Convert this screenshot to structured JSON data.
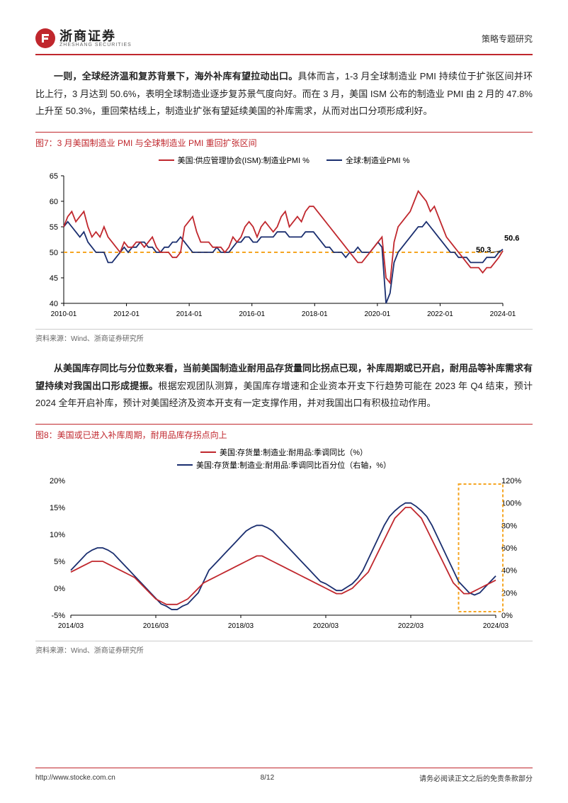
{
  "header": {
    "logo_main": "浙商证券",
    "logo_sub": "ZHESHANG SECURITIES",
    "right_text": "策略专题研究"
  },
  "para1": {
    "bold1": "一则，全球经济温和复苏背景下，海外补库有望拉动出口。",
    "text1": "具体而言，1-3 月全球制造业 PMI 持续位于扩张区间并环比上行，3 月达到 50.6%，表明全球制造业逐步复苏景气度向好。而在 3 月，美国 ISM 公布的制造业 PMI 由 2 月的 47.8%上升至 50.3%，重回荣枯线上，制造业扩张有望延续美国的补库需求，从而对出口分项形成利好。"
  },
  "fig7": {
    "title": "图7：3 月美国制造业 PMI 与全球制造业 PMI 重回扩张区间",
    "legend1": "美国:供应管理协会(ISM):制造业PMI %",
    "legend2": "全球:制造业PMI %",
    "color1": "#c0272d",
    "color2": "#1a2e6f",
    "threshold_color": "#f5a623",
    "threshold_value": 50,
    "ylim": [
      40,
      65
    ],
    "ytick_step": 5,
    "x_labels": [
      "2010-01",
      "2012-01",
      "2014-01",
      "2016-01",
      "2018-01",
      "2020-01",
      "2022-01",
      "2024-01"
    ],
    "annotations": [
      {
        "label": "50.6",
        "y": 50.6
      },
      {
        "label": "50.3",
        "y": 50.3
      }
    ],
    "series1": [
      55,
      57,
      58,
      56,
      57,
      58,
      55,
      53,
      54,
      53,
      55,
      53,
      52,
      51,
      50,
      52,
      51,
      51,
      52,
      52,
      51,
      52,
      53,
      51,
      50,
      50,
      50,
      49,
      49,
      50,
      55,
      56,
      57,
      54,
      52,
      52,
      52,
      51,
      51,
      51,
      50,
      51,
      53,
      52,
      53,
      55,
      56,
      55,
      53,
      55,
      56,
      55,
      54,
      55,
      57,
      58,
      55,
      56,
      57,
      56,
      58,
      59,
      59,
      58,
      57,
      56,
      55,
      54,
      53,
      52,
      51,
      50,
      49,
      48,
      48,
      49,
      50,
      51,
      52,
      53,
      45,
      44,
      52,
      55,
      56,
      57,
      58,
      60,
      62,
      61,
      60,
      58,
      59,
      57,
      55,
      53,
      52,
      51,
      50,
      49,
      48,
      47,
      47,
      47,
      46,
      47,
      47,
      48,
      49,
      50.3
    ],
    "series2": [
      55,
      56,
      55,
      54,
      53,
      54,
      52,
      51,
      50,
      50,
      50,
      48,
      48,
      49,
      50,
      51,
      50,
      51,
      51,
      52,
      52,
      51,
      51,
      50,
      50,
      51,
      51,
      52,
      52,
      53,
      52,
      51,
      50,
      50,
      50,
      50,
      50,
      50,
      51,
      50,
      50,
      50,
      51,
      52,
      52,
      53,
      53,
      52,
      52,
      53,
      53,
      53,
      53,
      54,
      54,
      54,
      53,
      53,
      53,
      53,
      54,
      54,
      54,
      53,
      52,
      51,
      51,
      50,
      50,
      50,
      49,
      50,
      50,
      51,
      50,
      50,
      50,
      51,
      52,
      51,
      40,
      42,
      48,
      50,
      51,
      52,
      53,
      54,
      55,
      55,
      56,
      55,
      54,
      53,
      52,
      51,
      50,
      50,
      49,
      49,
      49,
      48,
      48,
      48,
      48,
      49,
      49,
      49,
      50,
      50.6
    ],
    "source": "资料来源：Wind、浙商证券研究所"
  },
  "para2": {
    "bold1": "从美国库存同比与分位数来看，当前美国制造业耐用品存货量同比拐点已现，补库周期或已开启，耐用品等补库需求有望持续对我国出口形成提振。",
    "text1": "根据宏观团队测算，美国库存增速和企业资本开支下行趋势可能在 2023 年 Q4 结束，预计 2024 全年开启补库，预计对美国经济及资本开支有一定支撑作用，并对我国出口有积极拉动作用。"
  },
  "fig8": {
    "title": "图8：美国或已进入补库周期，耐用品库存拐点向上",
    "legend1": "美国:存货量:制造业:耐用品:季调同比（%）",
    "legend2": "美国:存货量:制造业:耐用品:季调同比百分位（右轴，%）",
    "color1": "#c0272d",
    "color2": "#1a2e6f",
    "ylim_left": [
      -5,
      20
    ],
    "ytick_step_left": 5,
    "ylim_right": [
      0,
      120
    ],
    "ytick_step_right": 20,
    "x_labels": [
      "2014/03",
      "2016/03",
      "2018/03",
      "2020/03",
      "2022/03",
      "2024/03"
    ],
    "series1": [
      3,
      3.5,
      4,
      4.5,
      5,
      5,
      5,
      4.5,
      4,
      3.5,
      3,
      2.5,
      2,
      1,
      0,
      -1,
      -2,
      -2.5,
      -3,
      -3,
      -3,
      -2.5,
      -2,
      -1,
      0,
      1,
      1.5,
      2,
      2.5,
      3,
      3.5,
      4,
      4.5,
      5,
      5.5,
      6,
      6,
      5.5,
      5,
      4.5,
      4,
      3.5,
      3,
      2.5,
      2,
      1.5,
      1,
      0.5,
      0,
      -0.5,
      -1,
      -1,
      -0.5,
      0,
      1,
      2,
      3,
      5,
      7,
      9,
      11,
      13,
      14,
      15,
      15,
      14,
      13,
      11,
      9,
      7,
      5,
      3,
      1,
      0,
      -1,
      -1,
      -0.5,
      0,
      0.5,
      1,
      1.5
    ],
    "series2": [
      40,
      45,
      50,
      55,
      58,
      60,
      60,
      58,
      55,
      50,
      45,
      40,
      35,
      30,
      25,
      20,
      15,
      10,
      8,
      5,
      5,
      8,
      10,
      15,
      20,
      30,
      40,
      45,
      50,
      55,
      60,
      65,
      70,
      75,
      78,
      80,
      80,
      78,
      75,
      70,
      65,
      60,
      55,
      50,
      45,
      40,
      35,
      30,
      28,
      25,
      22,
      22,
      25,
      28,
      33,
      40,
      50,
      60,
      70,
      80,
      88,
      93,
      97,
      100,
      100,
      97,
      93,
      88,
      80,
      70,
      60,
      50,
      40,
      30,
      25,
      20,
      18,
      20,
      25,
      30,
      35
    ],
    "highlight_box": {
      "color": "#f5a623",
      "dash": "4 3"
    },
    "source": "资料来源：Wind、浙商证券研究所"
  },
  "footer": {
    "url": "http://www.stocke.com.cn",
    "page": "8/12",
    "disclaimer": "请务必阅读正文之后的免责条款部分"
  }
}
